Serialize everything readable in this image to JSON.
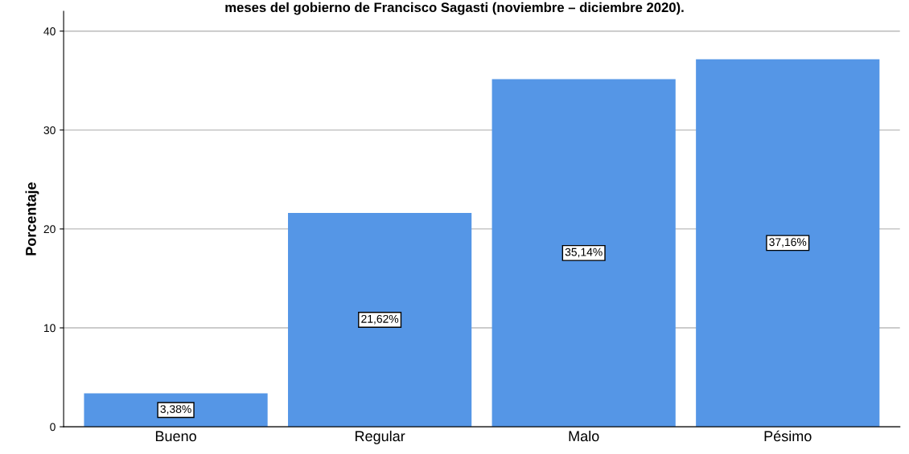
{
  "chart_data": {
    "type": "bar",
    "title": "meses del gobierno de Francisco Sagasti (noviembre – diciembre 2020).",
    "ylabel": "Porcentaje",
    "categories": [
      "Bueno",
      "Regular",
      "Malo",
      "Pésimo"
    ],
    "values": [
      3.38,
      21.62,
      35.14,
      37.16
    ],
    "value_labels": [
      "3,38%",
      "21,62%",
      "35,14%",
      "37,16%"
    ],
    "color": "#5596e6",
    "ylim": [
      0,
      42
    ],
    "yticks": [
      0,
      10,
      20,
      30,
      40
    ],
    "grid": "y",
    "legend": false
  }
}
